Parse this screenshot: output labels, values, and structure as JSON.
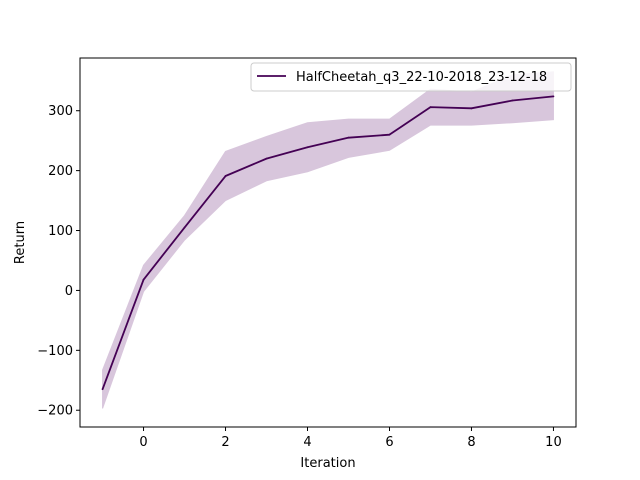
{
  "chart_data": {
    "type": "line",
    "title": "",
    "xlabel": "Iteration",
    "ylabel": "Return",
    "xlim": [
      -1.55,
      10.55
    ],
    "ylim": [
      -228,
      388
    ],
    "xticks": [
      0,
      2,
      4,
      6,
      8,
      10
    ],
    "xtick_labels": [
      "0",
      "2",
      "4",
      "6",
      "8",
      "10"
    ],
    "yticks": [
      -200,
      -100,
      0,
      100,
      200,
      300
    ],
    "ytick_labels": [
      "−200",
      "−100",
      "0",
      "100",
      "200",
      "300"
    ],
    "grid": false,
    "legend_position": "top-right",
    "x": [
      -1,
      0,
      1,
      2,
      3,
      4,
      5,
      6,
      7,
      8,
      9,
      10
    ],
    "series": [
      {
        "name": "HalfCheetah_q3_22-10-2018_23-12-18",
        "color": "#440154",
        "band_color": "#d8c6dc",
        "values": [
          -165,
          18,
          105,
          191,
          220,
          239,
          255,
          260,
          306,
          304,
          317,
          324
        ],
        "upper": [
          -133,
          42,
          125,
          232,
          257,
          280,
          286,
          286,
          336,
          331,
          360,
          365
        ],
        "lower": [
          -197,
          -2,
          84,
          150,
          183,
          198,
          222,
          234,
          276,
          276,
          280,
          285
        ]
      }
    ]
  }
}
